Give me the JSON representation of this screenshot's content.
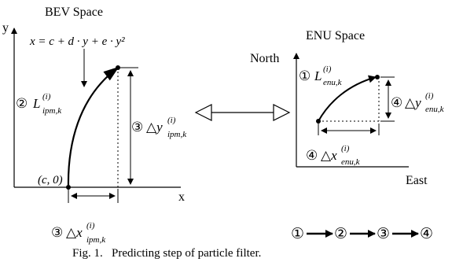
{
  "bev": {
    "title": "BEV Space",
    "y_axis": "y",
    "x_axis": "x",
    "equation": "x = c + d · y + e · y²",
    "origin": "(c, 0)",
    "lane_label": {
      "num": "②",
      "sym": "L",
      "sup": "(i)",
      "sub": "ipm,k"
    },
    "dy_label": {
      "num": "③",
      "sym": "△y",
      "sup": "(i)",
      "sub": "ipm,k"
    },
    "dx_label": {
      "num": "③",
      "sym": "△x",
      "sup": "(i)",
      "sub": "ipm,k"
    }
  },
  "enu": {
    "title": "ENU Space",
    "y_axis": "North",
    "x_axis": "East",
    "lane_label": {
      "num": "①",
      "sym": "L",
      "sup": "(i)",
      "sub": "enu,k"
    },
    "dy_label": {
      "num": "④",
      "sym": "△y",
      "sup": "(i)",
      "sub": "enu,k"
    },
    "dx_label": {
      "num": "④",
      "sym": "△x",
      "sup": "(i)",
      "sub": "enu,k"
    }
  },
  "sequence": [
    "①",
    "②",
    "③",
    "④"
  ],
  "caption": "Fig. 1.   Predicting step of particle filter."
}
